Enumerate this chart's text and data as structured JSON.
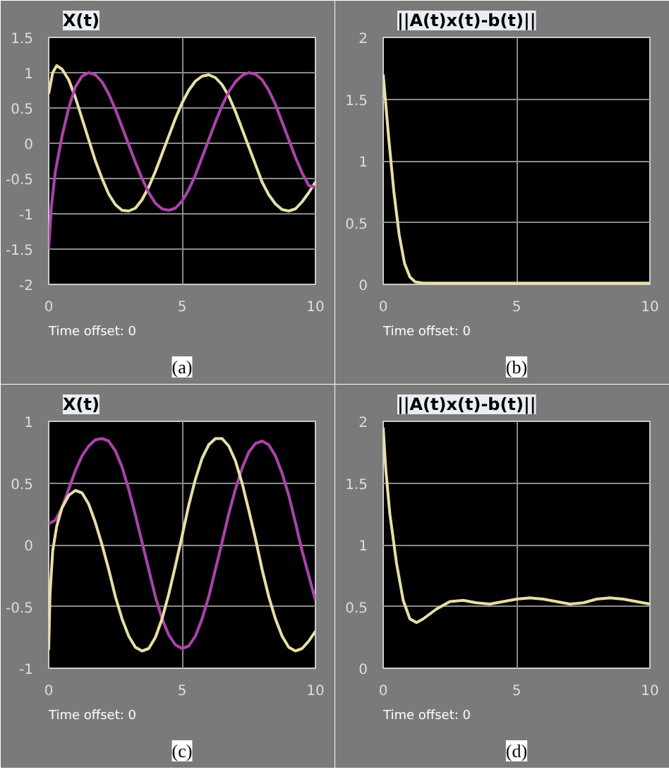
{
  "chart_data": [
    {
      "type": "line",
      "title": "X(t)",
      "xlim": [
        0,
        10
      ],
      "ylim": [
        -2,
        1.5
      ],
      "xticks": [
        0,
        5,
        10
      ],
      "yticks": [
        -2,
        -1.5,
        -1,
        -0.5,
        0,
        0.5,
        1,
        1.5
      ],
      "grid": true,
      "annotations": [
        "Time offset:  0",
        "(a)"
      ],
      "series": [
        {
          "color": "#e8e0a0",
          "x": [
            0,
            0.15,
            0.3,
            0.5,
            0.75,
            1.0,
            1.25,
            1.5,
            1.75,
            2.0,
            2.25,
            2.5,
            2.75,
            3.0,
            3.25,
            3.5,
            3.75,
            4.0,
            4.25,
            4.5,
            4.75,
            5.0,
            5.25,
            5.5,
            5.75,
            6.0,
            6.25,
            6.5,
            6.75,
            7.0,
            7.25,
            7.5,
            7.75,
            8.0,
            8.25,
            8.5,
            8.75,
            9.0,
            9.25,
            9.5,
            9.75,
            10
          ],
          "values": [
            0.7,
            1.0,
            1.1,
            1.05,
            0.9,
            0.65,
            0.35,
            0.05,
            -0.25,
            -0.5,
            -0.72,
            -0.87,
            -0.95,
            -0.96,
            -0.92,
            -0.8,
            -0.62,
            -0.4,
            -0.15,
            0.1,
            0.35,
            0.57,
            0.75,
            0.88,
            0.95,
            0.97,
            0.93,
            0.83,
            0.67,
            0.45,
            0.2,
            -0.05,
            -0.3,
            -0.55,
            -0.73,
            -0.86,
            -0.94,
            -0.96,
            -0.93,
            -0.83,
            -0.7,
            -0.55
          ]
        },
        {
          "color": "#b040b0",
          "x": [
            0,
            0.1,
            0.25,
            0.5,
            0.75,
            1.0,
            1.25,
            1.5,
            1.75,
            2.0,
            2.25,
            2.5,
            2.75,
            3.0,
            3.25,
            3.5,
            3.75,
            4.0,
            4.25,
            4.5,
            4.75,
            5.0,
            5.25,
            5.5,
            5.75,
            6.0,
            6.25,
            6.5,
            6.75,
            7.0,
            7.25,
            7.5,
            7.75,
            8.0,
            8.25,
            8.5,
            8.75,
            9.0,
            9.25,
            9.5,
            9.75,
            10
          ],
          "values": [
            -1.5,
            -0.9,
            -0.4,
            0.1,
            0.5,
            0.8,
            0.95,
            1.0,
            0.97,
            0.87,
            0.7,
            0.48,
            0.23,
            -0.02,
            -0.27,
            -0.5,
            -0.7,
            -0.85,
            -0.93,
            -0.95,
            -0.92,
            -0.82,
            -0.66,
            -0.45,
            -0.2,
            0.05,
            0.3,
            0.53,
            0.73,
            0.87,
            0.96,
            1.0,
            0.98,
            0.9,
            0.75,
            0.55,
            0.3,
            0.05,
            -0.2,
            -0.42,
            -0.6,
            -0.62
          ]
        }
      ]
    },
    {
      "type": "line",
      "title": "||A(t)x(t)-b(t)||",
      "xlim": [
        0,
        10
      ],
      "ylim": [
        0,
        2
      ],
      "xticks": [
        0,
        5,
        10
      ],
      "yticks": [
        0,
        0.5,
        1,
        1.5,
        2
      ],
      "grid": true,
      "annotations": [
        "Time offset:  0",
        "(b)"
      ],
      "series": [
        {
          "color": "#e8e0a0",
          "x": [
            0,
            0.2,
            0.4,
            0.6,
            0.8,
            1.0,
            1.2,
            1.5,
            2,
            10
          ],
          "values": [
            1.7,
            1.2,
            0.75,
            0.4,
            0.17,
            0.06,
            0.02,
            0.01,
            0.01,
            0.01
          ]
        }
      ]
    },
    {
      "type": "line",
      "title": "X(t)",
      "xlim": [
        0,
        10
      ],
      "ylim": [
        -1,
        1
      ],
      "xticks": [
        0,
        5,
        10
      ],
      "yticks": [
        -1,
        -0.5,
        0,
        0.5,
        1
      ],
      "grid": true,
      "annotations": [
        "Time offset:  0",
        "(c)"
      ],
      "series": [
        {
          "color": "#b040b0",
          "x": [
            0,
            0.25,
            0.5,
            0.75,
            1.0,
            1.25,
            1.5,
            1.75,
            2.0,
            2.25,
            2.5,
            2.75,
            3.0,
            3.25,
            3.5,
            3.75,
            4.0,
            4.25,
            4.5,
            4.75,
            5.0,
            5.25,
            5.5,
            5.75,
            6.0,
            6.25,
            6.5,
            6.75,
            7.0,
            7.25,
            7.5,
            7.75,
            8.0,
            8.25,
            8.5,
            8.75,
            9.0,
            9.25,
            9.5,
            9.75,
            10
          ],
          "values": [
            0.17,
            0.2,
            0.3,
            0.45,
            0.6,
            0.72,
            0.8,
            0.85,
            0.86,
            0.84,
            0.76,
            0.63,
            0.45,
            0.24,
            0.02,
            -0.2,
            -0.42,
            -0.6,
            -0.73,
            -0.81,
            -0.84,
            -0.82,
            -0.74,
            -0.6,
            -0.42,
            -0.2,
            0.02,
            0.25,
            0.45,
            0.62,
            0.75,
            0.82,
            0.84,
            0.81,
            0.72,
            0.58,
            0.4,
            0.18,
            -0.05,
            -0.25,
            -0.45
          ]
        },
        {
          "color": "#e8e0a0",
          "x": [
            0,
            0.05,
            0.15,
            0.3,
            0.5,
            0.75,
            1.0,
            1.25,
            1.5,
            1.75,
            2.0,
            2.25,
            2.5,
            2.75,
            3.0,
            3.25,
            3.5,
            3.75,
            4.0,
            4.25,
            4.5,
            4.75,
            5.0,
            5.25,
            5.5,
            5.75,
            6.0,
            6.25,
            6.5,
            6.75,
            7.0,
            7.25,
            7.5,
            7.75,
            8.0,
            8.25,
            8.5,
            8.75,
            9.0,
            9.25,
            9.5,
            9.75,
            10
          ],
          "values": [
            -0.85,
            -0.4,
            -0.05,
            0.15,
            0.3,
            0.4,
            0.44,
            0.42,
            0.33,
            0.18,
            0.0,
            -0.2,
            -0.42,
            -0.6,
            -0.74,
            -0.83,
            -0.86,
            -0.84,
            -0.75,
            -0.6,
            -0.4,
            -0.17,
            0.07,
            0.32,
            0.53,
            0.7,
            0.81,
            0.86,
            0.86,
            0.8,
            0.68,
            0.5,
            0.28,
            0.05,
            -0.2,
            -0.42,
            -0.6,
            -0.74,
            -0.83,
            -0.86,
            -0.84,
            -0.78,
            -0.7
          ]
        }
      ]
    },
    {
      "type": "line",
      "title": "||A(t)x(t)-b(t)||",
      "xlim": [
        0,
        10
      ],
      "ylim": [
        0,
        2
      ],
      "xticks": [
        0,
        5,
        10
      ],
      "yticks": [
        0,
        0.5,
        1,
        1.5,
        2
      ],
      "grid": true,
      "annotations": [
        "Time offset:  0",
        "(d)"
      ],
      "series": [
        {
          "color": "#e8e0a0",
          "x": [
            0,
            0.1,
            0.25,
            0.5,
            0.75,
            1.0,
            1.25,
            1.5,
            2.0,
            2.5,
            3.0,
            3.5,
            4.0,
            4.5,
            5.0,
            5.5,
            6.0,
            6.5,
            7.0,
            7.5,
            8.0,
            8.5,
            9.0,
            9.5,
            10
          ],
          "values": [
            1.95,
            1.6,
            1.25,
            0.85,
            0.55,
            0.4,
            0.37,
            0.4,
            0.48,
            0.54,
            0.55,
            0.53,
            0.52,
            0.54,
            0.56,
            0.57,
            0.56,
            0.54,
            0.52,
            0.53,
            0.56,
            0.57,
            0.56,
            0.54,
            0.52
          ]
        }
      ]
    }
  ]
}
